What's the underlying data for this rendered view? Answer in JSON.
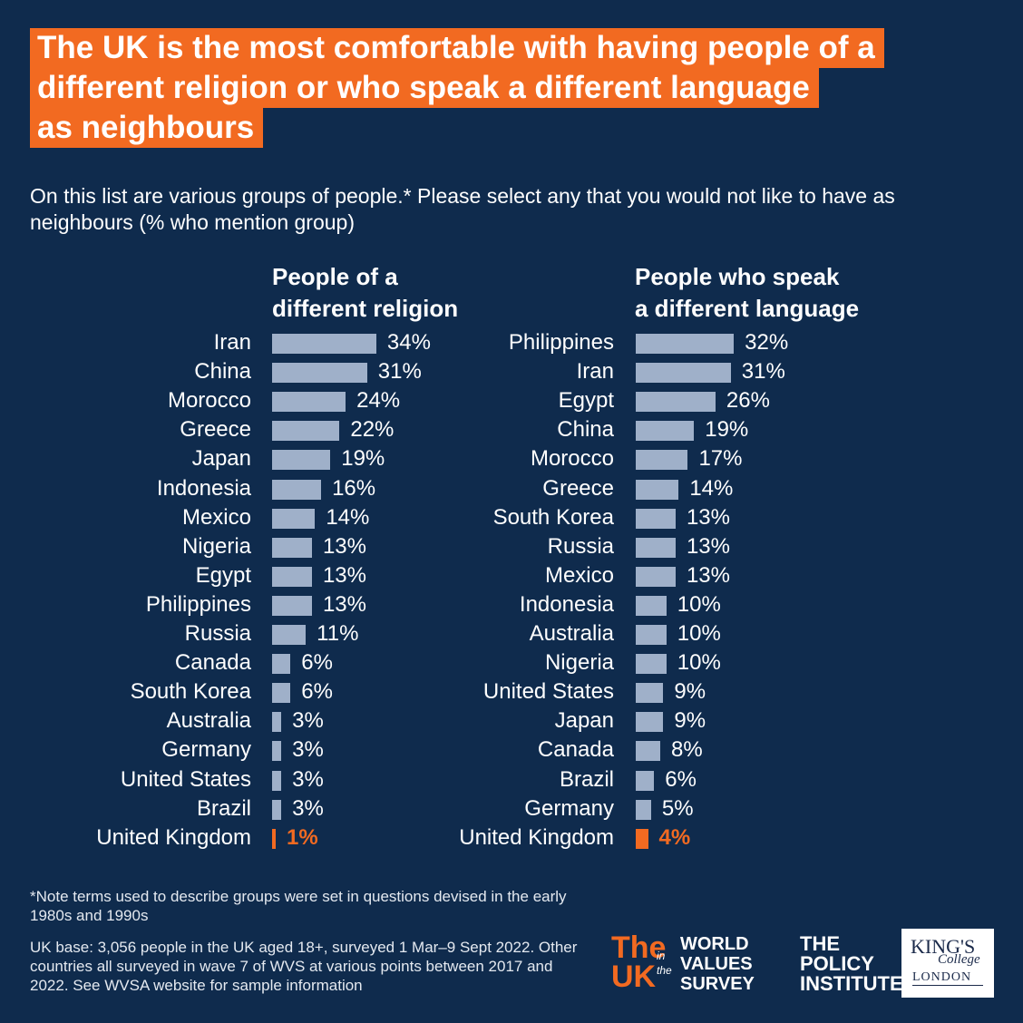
{
  "title_lines": [
    "The UK is the most comfortable with having people of a",
    "different religion or who speak a different language",
    "as neighbours"
  ],
  "subtitle": "On this list are various groups of people.* Please select any that you would not like to have as neighbours (% who mention group)",
  "colors": {
    "background": "#0f2b4d",
    "accent": "#f26a21",
    "bar": "#9fb0c9"
  },
  "chart_data": [
    {
      "type": "bar",
      "orientation": "horizontal",
      "title": "People of a different religion",
      "unit": "%",
      "highlight": "United Kingdom",
      "categories": [
        "Iran",
        "China",
        "Morocco",
        "Greece",
        "Japan",
        "Indonesia",
        "Mexico",
        "Nigeria",
        "Egypt",
        "Philippines",
        "Russia",
        "Canada",
        "South Korea",
        "Australia",
        "Germany",
        "United States",
        "Brazil",
        "United Kingdom"
      ],
      "values": [
        34,
        31,
        24,
        22,
        19,
        16,
        14,
        13,
        13,
        13,
        11,
        6,
        6,
        3,
        3,
        3,
        3,
        1
      ]
    },
    {
      "type": "bar",
      "orientation": "horizontal",
      "title": "People who speak a different language",
      "unit": "%",
      "highlight": "United Kingdom",
      "categories": [
        "Philippines",
        "Iran",
        "Egypt",
        "China",
        "Morocco",
        "Greece",
        "South Korea",
        "Russia",
        "Mexico",
        "Indonesia",
        "Australia",
        "Nigeria",
        "United States",
        "Japan",
        "Canada",
        "Brazil",
        "Germany",
        "United Kingdom"
      ],
      "values": [
        32,
        31,
        26,
        19,
        17,
        14,
        13,
        13,
        13,
        10,
        10,
        10,
        9,
        9,
        8,
        6,
        5,
        4
      ]
    }
  ],
  "panel_titles": [
    [
      "People of a",
      "different religion"
    ],
    [
      "People who speak",
      "a different language"
    ]
  ],
  "footnote": "*Note terms used to describe groups were set in questions devised in the early 1980s and 1990s",
  "base_note": "UK base: 3,056 people in the UK aged 18+, surveyed 1 Mar–9 Sept 2022. Other countries all surveyed in wave 7 of WVS at various points between 2017 and 2022. See WVSA website for sample information",
  "logos": {
    "uk_wvs": {
      "the": "The",
      "uk": "UK",
      "in": "in",
      "the_small": "the",
      "lines": [
        "WORLD",
        "VALUES",
        "SURVEY"
      ]
    },
    "policy_institute": [
      "THE",
      "POLICY",
      "INSTITUTE"
    ],
    "kings": {
      "line1": "KING'S",
      "line2": "College",
      "line3": "LONDON"
    }
  }
}
